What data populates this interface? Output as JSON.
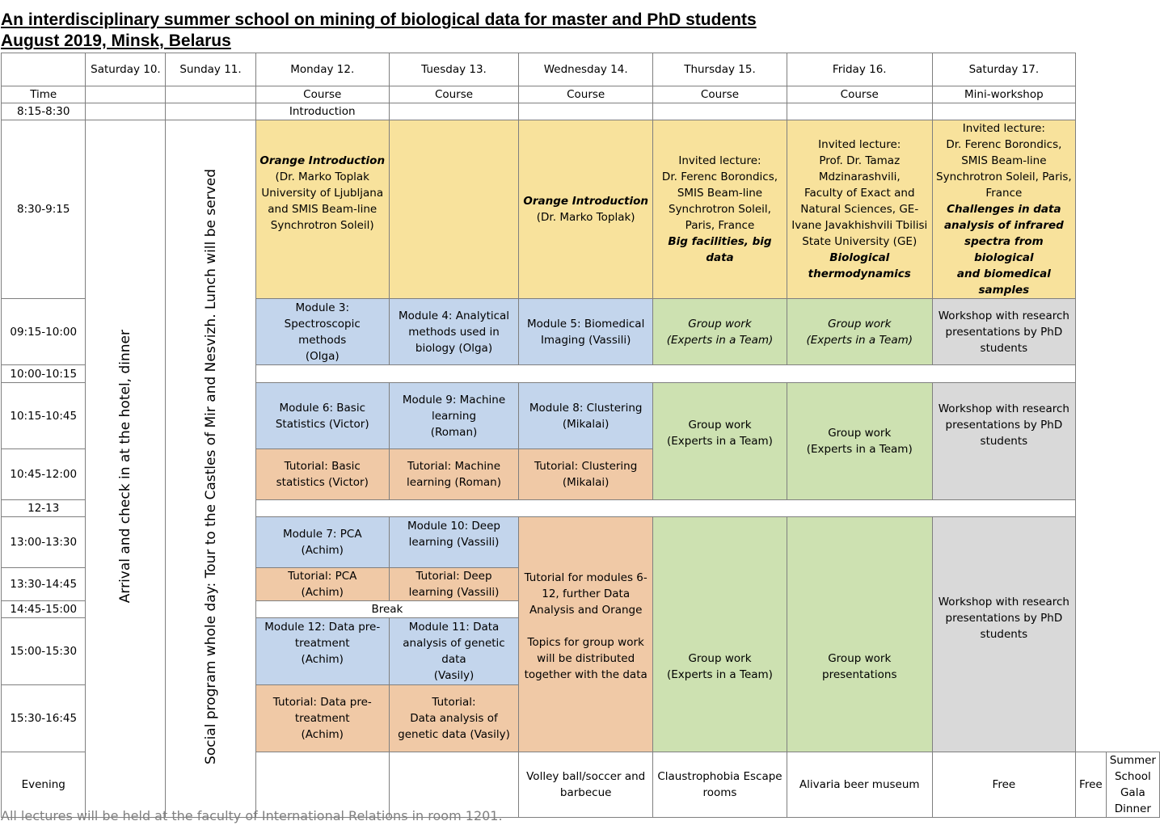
{
  "title": {
    "line1": "An interdisciplinary summer school on mining of biological data for master and PhD students",
    "line2": "August 2019, Minsk, Belarus"
  },
  "header": {
    "days": [
      "",
      "Saturday 10.",
      "Sunday 11.",
      "Monday 12.",
      "Tuesday 13.",
      "Wednesday 14.",
      "Thursday 15.",
      "Friday 16.",
      "Saturday 17."
    ],
    "types": [
      "Time",
      "",
      "",
      "Course",
      "Course",
      "Course",
      "Course",
      "Course",
      "Mini-workshop"
    ]
  },
  "times": [
    "8:15-8:30",
    "8:30-9:15",
    "09:15-10:00",
    "10:00-10:15",
    "10:15-10:45",
    "10:45-12:00",
    "12-13",
    "13:00-13:30",
    "13:30-14:45",
    "14:45-15:00",
    "15:00-15:30",
    "15:30-16:45",
    "Evening"
  ],
  "sat10_vertical": "Arrival and check in at the hotel, dinner",
  "sun11_vertical": "Social program whole day: Tour to the Castles of Mir and Nesvizh. Lunch will be served",
  "intro_row": {
    "mon": "Introduction"
  },
  "lectures": {
    "mon_title": "Orange Introduction",
    "mon_lines": [
      "(Dr. Marko Toplak",
      "University of Ljubljana",
      "and SMIS Beam-line",
      "Synchrotron Soleil)"
    ],
    "wed_title": "Orange Introduction",
    "wed_lines": [
      "(Dr. Marko Toplak)"
    ],
    "thu_lines": [
      "Invited lecture:",
      "Dr. Ferenc Borondics,",
      "SMIS Beam-line",
      "Synchrotron Soleil,",
      "Paris, France"
    ],
    "thu_title": "Big facilities, big data",
    "fri_lines": [
      "Invited lecture:",
      "Prof. Dr. Tamaz",
      "Mdzinarashvili,",
      "Faculty of Exact and",
      "Natural Sciences, GE-",
      "Ivane Javakhishvili Tbilisi",
      "State University (GE)"
    ],
    "fri_title": [
      "Biological",
      "thermodynamics"
    ],
    "sat_lines": [
      "Invited lecture:",
      "Dr. Ferenc Borondics,",
      "SMIS Beam-line",
      "Synchrotron Soleil, Paris,",
      "France"
    ],
    "sat_title": [
      "Challenges in data",
      "analysis of infrared",
      "spectra from biological",
      "and biomedical samples"
    ]
  },
  "block_0915": {
    "mon": [
      "Module 3:",
      "Spectroscopic",
      "methods",
      "(Olga)"
    ],
    "tue": [
      "Module 4: Analytical",
      "methods used in",
      "biology (Olga)"
    ],
    "wed": [
      "Module 5: Biomedical",
      "Imaging (Vassili)"
    ],
    "thu": [
      "Group work",
      "(Experts in a Team)"
    ],
    "fri": [
      "Group work",
      "(Experts in a Team)"
    ],
    "sat": [
      "Workshop with research",
      "presentations by PhD",
      "students"
    ]
  },
  "block_1015": {
    "mon": [
      "Module 6: Basic",
      "Statistics (Victor)"
    ],
    "tue": [
      "Module 9: Machine",
      "learning",
      "(Roman)"
    ],
    "wed": [
      "Module 8: Clustering",
      "(Mikalai)"
    ],
    "thu_a": "Group work",
    "thu_b": "(Experts in a Team)",
    "fri_a": "Group work",
    "fri_b": "(Experts in a Team)",
    "sat": [
      "Workshop with research",
      "presentations by PhD",
      "students"
    ]
  },
  "block_1045": {
    "mon": [
      "Tutorial: Basic",
      "statistics (Victor)"
    ],
    "tue": [
      "Tutorial: Machine",
      "learning (Roman)"
    ],
    "wed": [
      "Tutorial: Clustering",
      "(Mikalai)"
    ]
  },
  "block_1300": {
    "mon": [
      "Module 7: PCA",
      "(Achim)"
    ],
    "tue": [
      "Module 10: Deep",
      "learning (Vassili)"
    ],
    "wed": [
      "Tutorial for modules 6-",
      "12, further Data",
      "Analysis and Orange",
      "",
      "Topics for group work",
      "will be distributed",
      "together with the data"
    ],
    "thu_a": "Group work",
    "thu_b": "(Experts in a Team)",
    "fri": [
      "Group work",
      "presentations"
    ],
    "sat": [
      "Workshop with research",
      "presentations by PhD",
      "students"
    ]
  },
  "block_1330": {
    "mon": [
      "Tutorial: PCA",
      "(Achim)"
    ],
    "tue": [
      "Tutorial: Deep",
      "learning (Vassili)"
    ]
  },
  "break_label": "Break",
  "block_1500": {
    "mon": [
      "Module 12: Data pre-",
      "treatment",
      "(Achim)"
    ],
    "tue": [
      "Module 11: Data",
      "analysis of genetic",
      "data",
      "(Vasily)"
    ]
  },
  "block_1530": {
    "mon": [
      "Tutorial: Data pre-",
      "treatment",
      "(Achim)"
    ],
    "tue": [
      "Tutorial:",
      "Data analysis of",
      "genetic data (Vasily)"
    ]
  },
  "evening": {
    "mon": [
      "Volley ball/soccer and",
      "barbecue"
    ],
    "tue": [
      "Claustrophobia Escape",
      "rooms"
    ],
    "wed": "Alivaria beer museum",
    "thu": "Free",
    "fri": "Free",
    "sat": [
      "Summer School Gala",
      "Dinner"
    ]
  },
  "footnote": "All lectures will be held at the faculty of International Relations in room 1201.",
  "colors": {
    "lecture": "#f8e29c",
    "module": "#c3d5ec",
    "tutorial": "#f0c9a6",
    "group_work": "#cde1b1",
    "workshop": "#d9d9d9"
  }
}
